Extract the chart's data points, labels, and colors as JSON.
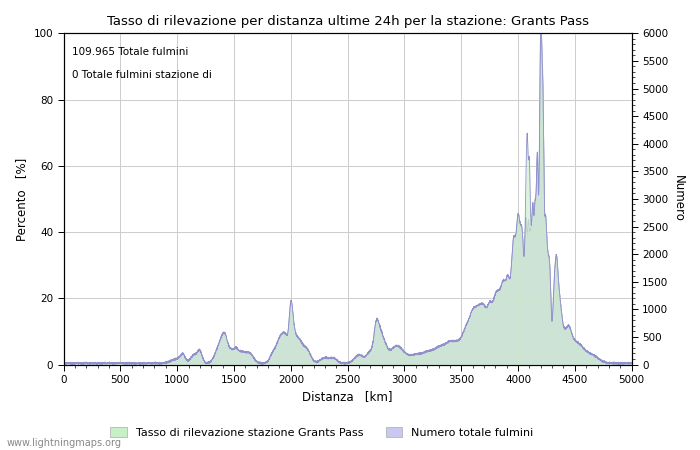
{
  "title": "Tasso di rilevazione per distanza ultime 24h per la stazione: Grants Pass",
  "xlabel": "Distanza   [km]",
  "ylabel_left": "Percento   [%]",
  "ylabel_right": "Numero",
  "annotation_line1": "109.965 Totale fulmini",
  "annotation_line2": "0 Totale fulmini stazione di",
  "legend_label1": "Tasso di rilevazione stazione Grants Pass",
  "legend_label2": "Numero totale fulmini",
  "legend_color1": "#c8f0c8",
  "legend_color2": "#c8c8f0",
  "watermark": "www.lightningmaps.org",
  "xlim": [
    0,
    5000
  ],
  "ylim_left": [
    0,
    100
  ],
  "ylim_right": [
    0,
    6000
  ],
  "xticks": [
    0,
    500,
    1000,
    1500,
    2000,
    2500,
    3000,
    3500,
    4000,
    4500,
    5000
  ],
  "yticks_left": [
    0,
    20,
    40,
    60,
    80,
    100
  ],
  "yticks_right": [
    0,
    500,
    1000,
    1500,
    2000,
    2500,
    3000,
    3500,
    4000,
    4500,
    5000,
    5500,
    6000
  ],
  "line_color": "#9090cc",
  "fill_color": "#ccccee",
  "green_fill_color": "#cceecc",
  "background_color": "#ffffff",
  "grid_color": "#cccccc",
  "figsize": [
    7.0,
    4.5
  ],
  "dpi": 100
}
